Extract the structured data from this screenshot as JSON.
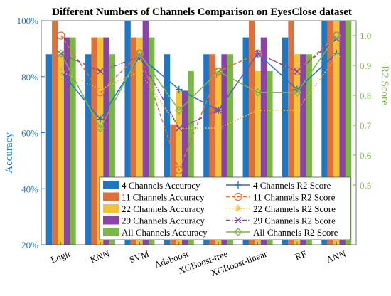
{
  "chart_data": {
    "type": "bar",
    "title": "Different Numbers of Channels Comparison on EyesClose dataset",
    "categories": [
      "Logit",
      "KNN",
      "SVM",
      "Adaboost",
      "XGBoost-tree",
      "XGBoost-linear",
      "RF",
      "ANN"
    ],
    "ylabel": "Accuracy",
    "ylim": [
      20,
      100
    ],
    "yticks": [
      "20%",
      "40%",
      "60%",
      "80%",
      "100%"
    ],
    "y2label": "R2 Score",
    "y2lim": [
      0.3,
      1.05
    ],
    "y2ticks": [
      "0.5",
      "0.6",
      "0.7",
      "0.8",
      "0.9",
      "1.0"
    ],
    "colors": [
      "#1f77c4",
      "#e0703a",
      "#f2c23a",
      "#8a44a6",
      "#7ab648"
    ],
    "bar_series": [
      {
        "name": "4 Channels Accuracy",
        "values": [
          88,
          88,
          100,
          88,
          88,
          94,
          94,
          100
        ]
      },
      {
        "name": "11 Channels Accuracy",
        "values": [
          100,
          94,
          94,
          63,
          88,
          100,
          100,
          100
        ]
      },
      {
        "name": "22 Channels Accuracy",
        "values": [
          88,
          94,
          94,
          75,
          82,
          82,
          88,
          100
        ]
      },
      {
        "name": "29 Channels Accuracy",
        "values": [
          94,
          94,
          100,
          75,
          88,
          94,
          88,
          100
        ]
      },
      {
        "name": "All Channels Accuracy",
        "values": [
          94,
          88,
          94,
          82,
          88,
          82,
          88,
          100
        ]
      }
    ],
    "line_series": [
      {
        "name": "4 Channels R2 Score",
        "values": [
          0.88,
          0.72,
          0.93,
          0.82,
          0.75,
          0.94,
          0.82,
          0.94
        ],
        "marker": "plus",
        "dash": "solid"
      },
      {
        "name": "11 Channels R2 Score",
        "values": [
          1.0,
          0.81,
          0.94,
          0.55,
          0.88,
          0.94,
          0.88,
          1.0
        ],
        "marker": "circle",
        "dash": "dashed"
      },
      {
        "name": "22 Channels R2 Score",
        "values": [
          0.88,
          0.82,
          0.88,
          0.69,
          0.69,
          0.75,
          0.75,
          0.93
        ],
        "marker": "star",
        "dash": "dotted"
      },
      {
        "name": "29 Channels R2 Score",
        "values": [
          0.94,
          0.88,
          0.93,
          0.69,
          0.75,
          0.94,
          0.88,
          0.99
        ],
        "marker": "x",
        "dash": "dashdot"
      },
      {
        "name": "All Channels R2 Score",
        "values": [
          0.94,
          0.69,
          0.94,
          0.75,
          0.88,
          0.81,
          0.81,
          1.0
        ],
        "marker": "diamond",
        "dash": "solid"
      }
    ],
    "legend_position": "bottom-right",
    "grid": false
  }
}
